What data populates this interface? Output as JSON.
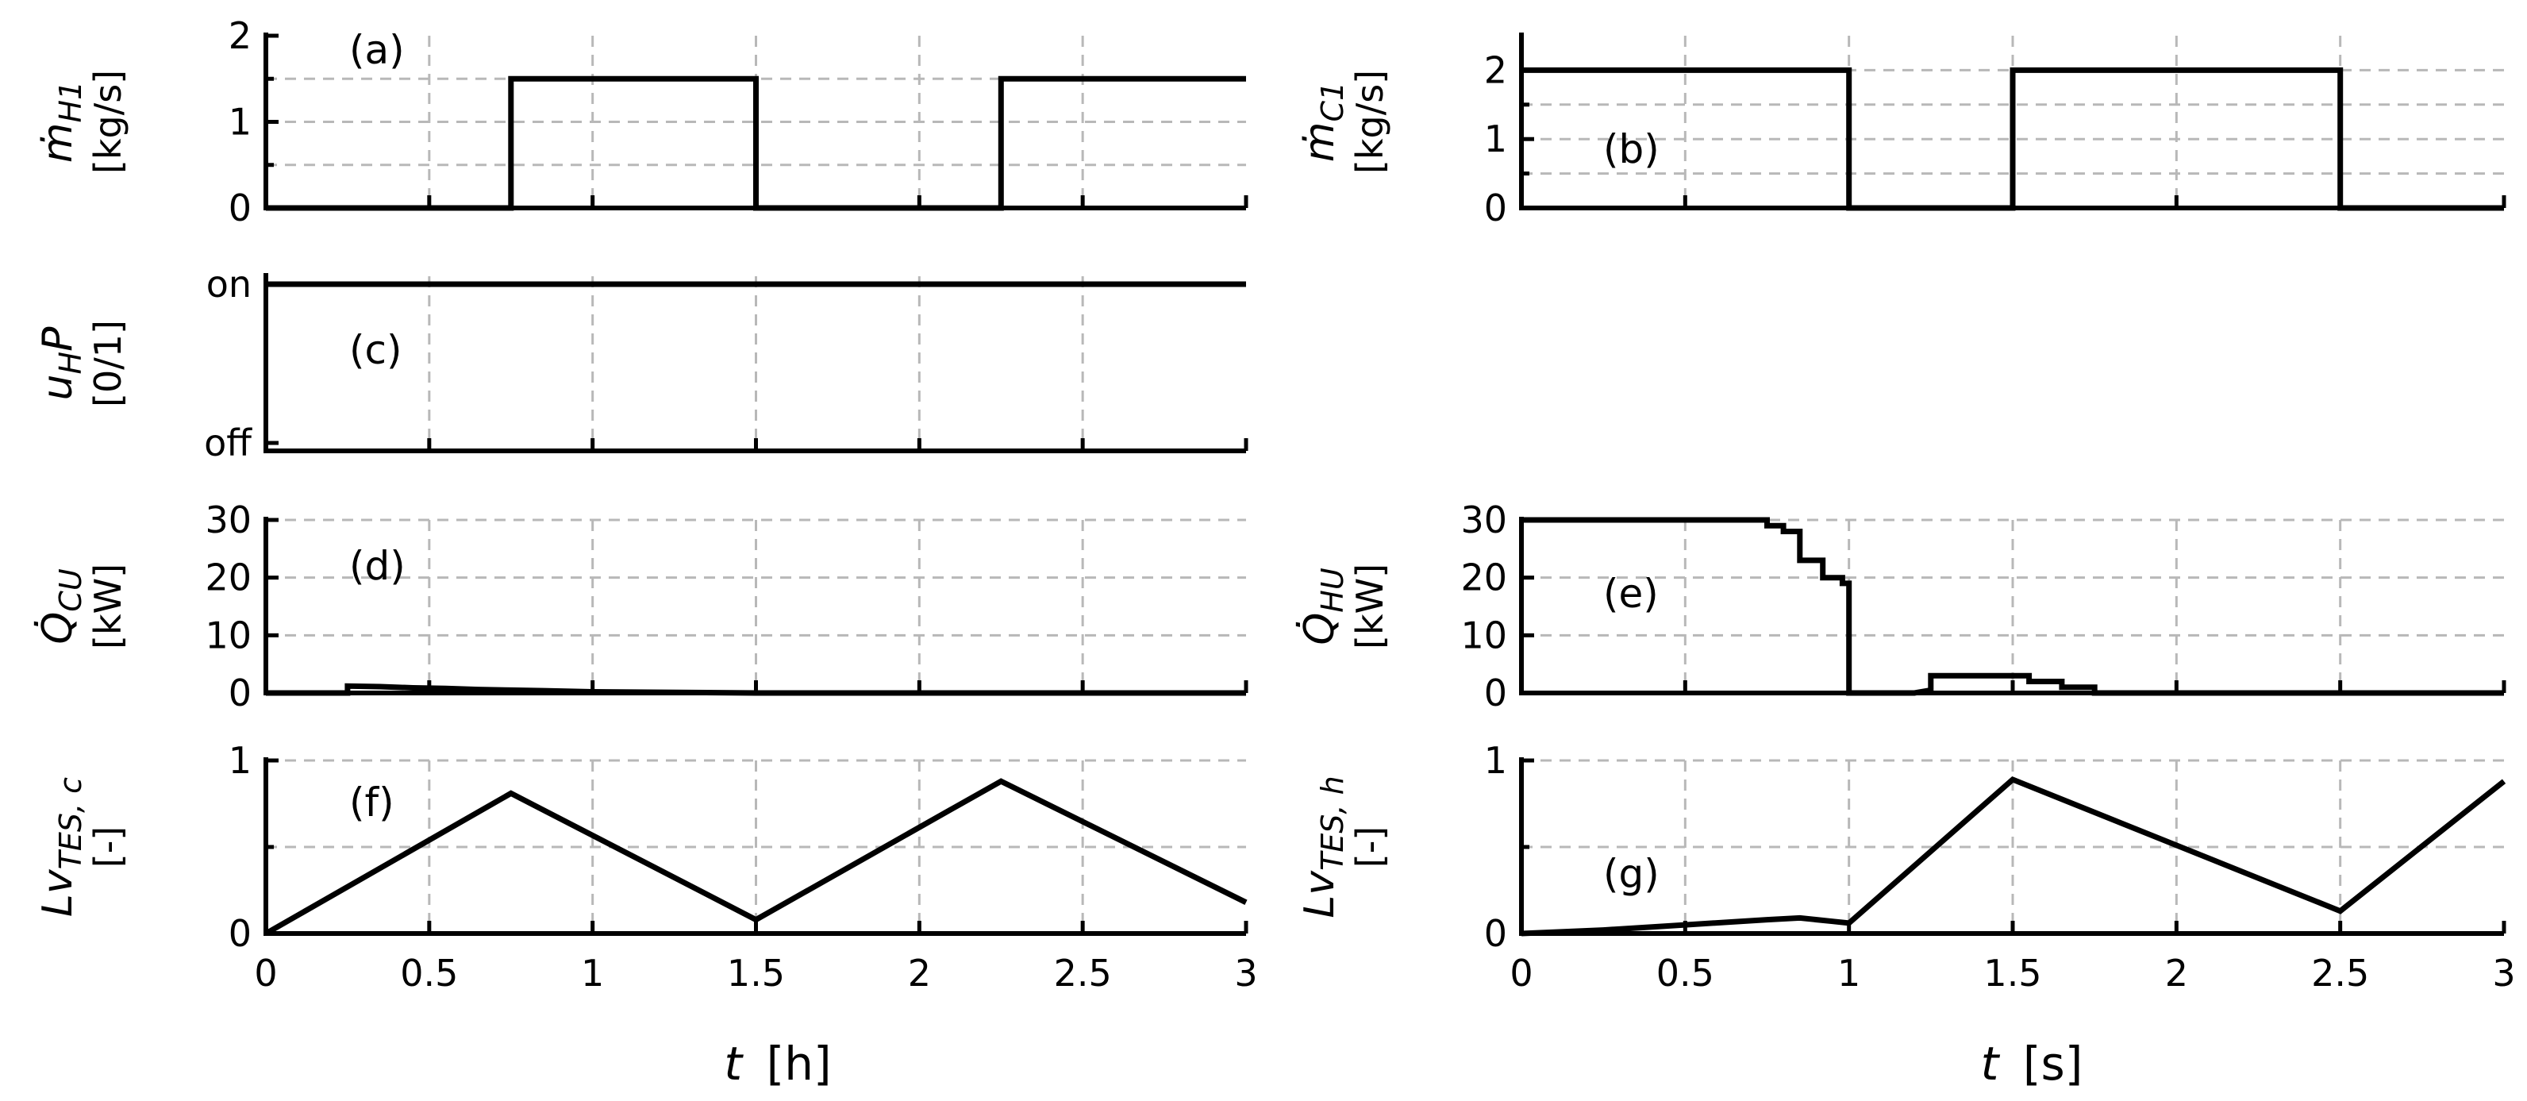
{
  "chart_data": [
    {
      "id": "a",
      "type": "line",
      "panel_label": "(a)",
      "ylabel_main": "ṁ",
      "ylabel_sub": "H1",
      "yunit": "[kg/s]",
      "xlim": [
        0,
        3
      ],
      "ylim": [
        0,
        2
      ],
      "yticks": [
        0,
        1,
        2
      ],
      "ytick_labels": [
        "0",
        "1",
        "2"
      ],
      "ygrid": [
        0.5,
        1,
        1.5
      ],
      "x": [
        0,
        0.75,
        0.75,
        1.5,
        1.5,
        2.25,
        2.25,
        3
      ],
      "y": [
        0,
        0,
        1.5,
        1.5,
        0,
        0,
        1.5,
        1.5
      ]
    },
    {
      "id": "b",
      "type": "line",
      "panel_label": "(b)",
      "ylabel_main": "ṁ",
      "ylabel_sub": "C1",
      "yunit": "[kg/s]",
      "xlim": [
        0,
        3
      ],
      "ylim": [
        0,
        2.5
      ],
      "yticks": [
        0,
        1,
        2
      ],
      "ytick_labels": [
        "0",
        "1",
        "2"
      ],
      "ygrid": [
        0.5,
        1,
        1.5,
        2
      ],
      "x": [
        0,
        1,
        1,
        1.5,
        1.5,
        2.5,
        2.5,
        3
      ],
      "y": [
        2,
        2,
        0,
        0,
        2,
        2,
        0,
        0
      ]
    },
    {
      "id": "c",
      "type": "line",
      "panel_label": "(c)",
      "ylabel_main": "u",
      "ylabel_sub": "H",
      "ylabel_tail": "P",
      "yunit": "[0/1]",
      "xlim": [
        0,
        3
      ],
      "ylim": [
        -0.05,
        1.05
      ],
      "yticks": [
        0,
        1
      ],
      "ytick_labels": [
        "off",
        "on"
      ],
      "ygrid": [],
      "x": [
        0,
        3
      ],
      "y": [
        1,
        1
      ]
    },
    {
      "id": "d",
      "type": "line",
      "panel_label": "(d)",
      "ylabel_main": "Q̇",
      "ylabel_sub": "CU",
      "yunit": "[kW]",
      "xlim": [
        0,
        3
      ],
      "ylim": [
        0,
        30
      ],
      "yticks": [
        0,
        10,
        20,
        30
      ],
      "ytick_labels": [
        "0",
        "10",
        "20",
        "30"
      ],
      "ygrid": [
        10,
        20,
        30
      ],
      "x": [
        0,
        0.25,
        0.25,
        0.35,
        0.45,
        0.55,
        0.65,
        0.75,
        0.85,
        1.0,
        1.5,
        3
      ],
      "y": [
        0,
        0,
        1.2,
        1.1,
        0.9,
        0.8,
        0.6,
        0.5,
        0.4,
        0.2,
        0,
        0
      ]
    },
    {
      "id": "e",
      "type": "line",
      "panel_label": "(e)",
      "ylabel_main": "Q̇",
      "ylabel_sub": "HU",
      "yunit": "[kW]",
      "xlim": [
        0,
        3
      ],
      "ylim": [
        0,
        30
      ],
      "yticks": [
        0,
        10,
        20,
        30
      ],
      "ytick_labels": [
        "0",
        "10",
        "20",
        "30"
      ],
      "ygrid": [
        10,
        20,
        30
      ],
      "x": [
        0,
        0.75,
        0.75,
        0.8,
        0.8,
        0.85,
        0.85,
        0.92,
        0.92,
        0.98,
        0.98,
        1.0,
        1.0,
        1.2,
        1.25,
        1.25,
        1.4,
        1.55,
        1.55,
        1.65,
        1.65,
        1.75,
        1.75,
        3
      ],
      "y": [
        30,
        30,
        29,
        29,
        28,
        28,
        23,
        23,
        20,
        20,
        19,
        19,
        0,
        0,
        0.5,
        3,
        3,
        3,
        2,
        2,
        1,
        1,
        0,
        0
      ]
    },
    {
      "id": "f",
      "type": "line",
      "panel_label": "(f)",
      "ylabel_main": "Lv",
      "ylabel_sub": "TES, c",
      "yunit": "[-]",
      "xlim": [
        0,
        3
      ],
      "ylim": [
        0,
        1
      ],
      "yticks": [
        0,
        1
      ],
      "ytick_labels": [
        "0",
        "1"
      ],
      "ygrid": [
        0.5,
        1
      ],
      "x": [
        0,
        0.75,
        1.5,
        2.1,
        2.25,
        3
      ],
      "y": [
        0,
        0.81,
        0.08,
        0.72,
        0.88,
        0.18
      ]
    },
    {
      "id": "g",
      "type": "line",
      "panel_label": "(g)",
      "ylabel_main": "Lv",
      "ylabel_sub": "TES, h",
      "yunit": "[-]",
      "xlim": [
        0,
        3
      ],
      "ylim": [
        0,
        1
      ],
      "yticks": [
        0,
        1
      ],
      "ytick_labels": [
        "0",
        "1"
      ],
      "ygrid": [
        0.5,
        1
      ],
      "x": [
        0,
        0.25,
        0.5,
        0.75,
        0.85,
        0.95,
        1.0,
        1.5,
        2.5,
        3
      ],
      "y": [
        0,
        0.02,
        0.05,
        0.08,
        0.09,
        0.07,
        0.06,
        0.89,
        0.13,
        0.88
      ]
    }
  ],
  "xticks": [
    0,
    0.5,
    1,
    1.5,
    2,
    2.5,
    3
  ],
  "xtick_labels": [
    "0",
    "0.5",
    "1",
    "1.5",
    "2",
    "2.5",
    "3"
  ],
  "xaxis_left": {
    "symbol": "t",
    "unit": "[h]"
  },
  "xaxis_right": {
    "symbol": "t",
    "unit": "[s]"
  }
}
